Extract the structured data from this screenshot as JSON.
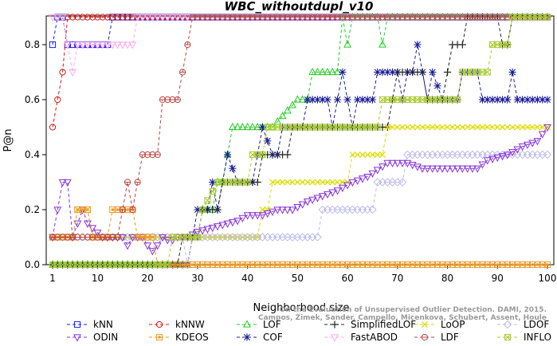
{
  "chart_data": {
    "type": "line",
    "title": "WBC_withoutdupl_v10",
    "xlabel": "Neighborhood size",
    "ylabel": "P@n",
    "xlim": [
      0,
      100
    ],
    "ylim": [
      0,
      0.9
    ],
    "x_ticks": [
      1,
      10,
      20,
      30,
      40,
      50,
      60,
      70,
      80,
      90,
      100
    ],
    "y_ticks": [
      0.0,
      0.2,
      0.4,
      0.6,
      0.8
    ],
    "y_tick_labels": [
      "0.0",
      "0.2",
      "0.4",
      "0.6",
      "0.8"
    ],
    "grid": false,
    "legend_position": "bottom",
    "watermark": [
      "On the Evaluation of Unsupervised Outlier Detection. DAMI, 2015.",
      "Campos, Zimek, Sander, Campello, Micenkova, Schubert, Assent, Houle"
    ],
    "series": [
      {
        "name": "kNN",
        "color": "#1a1aff",
        "marker": "square",
        "points": [
          [
            1,
            0.8
          ],
          [
            2,
            0.9
          ],
          [
            3,
            0.9
          ],
          [
            4,
            0.8
          ],
          [
            5,
            0.8
          ],
          [
            8,
            0.8
          ],
          [
            12,
            0.8
          ],
          [
            13,
            0.9
          ],
          [
            100,
            0.9
          ]
        ]
      },
      {
        "name": "kNNW",
        "color": "#dd1111",
        "marker": "circle",
        "points": [
          [
            1,
            0.5
          ],
          [
            2,
            0.6
          ],
          [
            3,
            0.7
          ],
          [
            4,
            0.9
          ],
          [
            100,
            0.9
          ]
        ]
      },
      {
        "name": "LOF",
        "color": "#22cc22",
        "marker": "triangle-up",
        "points": [
          [
            1,
            0.0
          ],
          [
            28,
            0.0
          ],
          [
            29,
            0.1
          ],
          [
            30,
            0.1
          ],
          [
            31,
            0.2
          ],
          [
            33,
            0.2
          ],
          [
            34,
            0.3
          ],
          [
            35,
            0.3
          ],
          [
            36,
            0.4
          ],
          [
            37,
            0.5
          ],
          [
            45,
            0.5
          ],
          [
            50,
            0.6
          ],
          [
            52,
            0.6
          ],
          [
            53,
            0.7
          ],
          [
            58,
            0.7
          ],
          [
            59,
            0.9
          ],
          [
            60,
            0.8
          ],
          [
            61,
            0.9
          ],
          [
            66,
            0.9
          ],
          [
            67,
            0.8
          ],
          [
            68,
            0.9
          ],
          [
            100,
            0.9
          ]
        ]
      },
      {
        "name": "COF",
        "color": "#1a1a99",
        "marker": "star",
        "points": [
          [
            1,
            0.0
          ],
          [
            28,
            0.0
          ],
          [
            29,
            0.1
          ],
          [
            30,
            0.2
          ],
          [
            32,
            0.2
          ],
          [
            33,
            0.3
          ],
          [
            34,
            0.2
          ],
          [
            35,
            0.3
          ],
          [
            36,
            0.4
          ],
          [
            38,
            0.3
          ],
          [
            41,
            0.3
          ],
          [
            42,
            0.4
          ],
          [
            43,
            0.5
          ],
          [
            45,
            0.4
          ],
          [
            46,
            0.4
          ],
          [
            47,
            0.5
          ],
          [
            51,
            0.5
          ],
          [
            52,
            0.6
          ],
          [
            56,
            0.6
          ],
          [
            57,
            0.5
          ],
          [
            58,
            0.6
          ],
          [
            59,
            0.7
          ],
          [
            60,
            0.6
          ],
          [
            61,
            0.5
          ],
          [
            62,
            0.6
          ],
          [
            65,
            0.6
          ],
          [
            66,
            0.7
          ],
          [
            70,
            0.7
          ],
          [
            71,
            0.6
          ],
          [
            72,
            0.7
          ],
          [
            73,
            0.7
          ],
          [
            74,
            0.8
          ],
          [
            75,
            0.7
          ],
          [
            76,
            0.6
          ],
          [
            77,
            0.7
          ],
          [
            79,
            0.6
          ],
          [
            82,
            0.6
          ],
          [
            83,
            0.7
          ],
          [
            86,
            0.7
          ],
          [
            87,
            0.6
          ],
          [
            92,
            0.6
          ],
          [
            93,
            0.7
          ],
          [
            94,
            0.6
          ],
          [
            100,
            0.6
          ]
        ]
      },
      {
        "name": "SimplifiedLOF",
        "color": "#222222",
        "marker": "plus",
        "points": [
          [
            1,
            0.0
          ],
          [
            26,
            0.0
          ],
          [
            27,
            0.1
          ],
          [
            30,
            0.1
          ],
          [
            31,
            0.2
          ],
          [
            34,
            0.2
          ],
          [
            35,
            0.3
          ],
          [
            42,
            0.3
          ],
          [
            43,
            0.4
          ],
          [
            48,
            0.4
          ],
          [
            49,
            0.5
          ],
          [
            68,
            0.5
          ],
          [
            69,
            0.6
          ],
          [
            70,
            0.7
          ],
          [
            75,
            0.7
          ],
          [
            76,
            0.6
          ],
          [
            79,
            0.6
          ],
          [
            80,
            0.7
          ],
          [
            81,
            0.8
          ],
          [
            83,
            0.8
          ],
          [
            84,
            0.9
          ],
          [
            90,
            0.9
          ],
          [
            91,
            0.8
          ],
          [
            92,
            0.8
          ],
          [
            93,
            0.9
          ],
          [
            100,
            0.9
          ]
        ]
      },
      {
        "name": "LoOP",
        "color": "#dddd00",
        "marker": "x",
        "points": [
          [
            1,
            0.1
          ],
          [
            5,
            0.1
          ],
          [
            6,
            0.2
          ],
          [
            8,
            0.2
          ],
          [
            9,
            0.1
          ],
          [
            29,
            0.1
          ],
          [
            30,
            0.1
          ],
          [
            42,
            0.1
          ],
          [
            43,
            0.2
          ],
          [
            44,
            0.2
          ],
          [
            45,
            0.3
          ],
          [
            60,
            0.3
          ],
          [
            61,
            0.4
          ],
          [
            67,
            0.4
          ],
          [
            68,
            0.5
          ],
          [
            100,
            0.5
          ]
        ]
      },
      {
        "name": "LDOF",
        "color": "#bbbbee",
        "marker": "diamond",
        "points": [
          [
            1,
            0.1
          ],
          [
            27,
            0.1
          ],
          [
            28,
            0.0
          ],
          [
            29,
            0.1
          ],
          [
            54,
            0.1
          ],
          [
            55,
            0.2
          ],
          [
            65,
            0.2
          ],
          [
            66,
            0.3
          ],
          [
            71,
            0.3
          ],
          [
            72,
            0.4
          ],
          [
            100,
            0.4
          ]
        ]
      },
      {
        "name": "ODIN",
        "color": "#8833dd",
        "marker": "triangle-down",
        "points": [
          [
            1,
            0.1
          ],
          [
            2,
            0.2
          ],
          [
            3,
            0.3
          ],
          [
            4,
            0.3
          ],
          [
            5,
            0.1
          ],
          [
            7,
            0.2
          ],
          [
            8,
            0.15
          ],
          [
            11,
            0.1
          ],
          [
            13,
            0.1
          ],
          [
            15,
            0.1
          ],
          [
            16,
            0.07
          ],
          [
            17,
            0.1
          ],
          [
            19,
            0.1
          ],
          [
            20,
            0.07
          ],
          [
            21,
            0.05
          ],
          [
            22,
            0.07
          ],
          [
            23,
            0.1
          ],
          [
            24,
            0.09
          ],
          [
            25,
            0.09
          ],
          [
            26,
            0.1
          ],
          [
            28,
            0.1
          ],
          [
            30,
            0.12
          ],
          [
            34,
            0.14
          ],
          [
            38,
            0.16
          ],
          [
            40,
            0.18
          ],
          [
            43,
            0.18
          ],
          [
            46,
            0.2
          ],
          [
            49,
            0.2
          ],
          [
            52,
            0.23
          ],
          [
            55,
            0.25
          ],
          [
            58,
            0.27
          ],
          [
            61,
            0.3
          ],
          [
            64,
            0.32
          ],
          [
            68,
            0.37
          ],
          [
            72,
            0.37
          ],
          [
            75,
            0.35
          ],
          [
            80,
            0.35
          ],
          [
            86,
            0.35
          ],
          [
            88,
            0.38
          ],
          [
            92,
            0.4
          ],
          [
            95,
            0.43
          ],
          [
            98,
            0.45
          ],
          [
            100,
            0.5
          ]
        ]
      },
      {
        "name": "KDEOS",
        "color": "#ee9922",
        "marker": "square-filled",
        "points": [
          [
            1,
            0.1
          ],
          [
            5,
            0.1
          ],
          [
            6,
            0.2
          ],
          [
            8,
            0.2
          ],
          [
            9,
            0.1
          ],
          [
            12,
            0.1
          ],
          [
            13,
            0.2
          ],
          [
            17,
            0.2
          ],
          [
            18,
            0.1
          ],
          [
            21,
            0.1
          ],
          [
            22,
            0.0
          ],
          [
            100,
            0.0
          ]
        ]
      },
      {
        "name": "FastABOD",
        "color": "#ffaaee",
        "marker": "triangle-down-open",
        "points": [
          [
            1,
            0.9
          ],
          [
            2,
            0.9
          ],
          [
            3,
            0.9
          ],
          [
            4,
            0.8
          ],
          [
            5,
            0.7
          ],
          [
            6,
            0.8
          ],
          [
            12,
            0.8
          ],
          [
            14,
            0.8
          ],
          [
            15,
            0.8
          ],
          [
            17,
            0.8
          ],
          [
            18,
            0.9
          ],
          [
            100,
            0.9
          ]
        ]
      },
      {
        "name": "LDF",
        "color": "#bb4444",
        "marker": "circle-dot",
        "points": [
          [
            1,
            0.1
          ],
          [
            2,
            0.1
          ],
          [
            8,
            0.1
          ],
          [
            10,
            0.1
          ],
          [
            14,
            0.1
          ],
          [
            15,
            0.2
          ],
          [
            16,
            0.3
          ],
          [
            17,
            0.2
          ],
          [
            18,
            0.3
          ],
          [
            19,
            0.4
          ],
          [
            20,
            0.4
          ],
          [
            22,
            0.4
          ],
          [
            23,
            0.6
          ],
          [
            26,
            0.6
          ],
          [
            27,
            0.7
          ],
          [
            28,
            0.8
          ],
          [
            29,
            0.9
          ],
          [
            100,
            0.9
          ]
        ]
      },
      {
        "name": "INFLO",
        "color": "#aacc33",
        "marker": "hourglass",
        "points": [
          [
            1,
            0.0
          ],
          [
            24,
            0.0
          ],
          [
            25,
            0.1
          ],
          [
            30,
            0.1
          ],
          [
            31,
            0.2
          ],
          [
            34,
            0.3
          ],
          [
            40,
            0.3
          ],
          [
            41,
            0.4
          ],
          [
            43,
            0.4
          ],
          [
            44,
            0.5
          ],
          [
            66,
            0.5
          ],
          [
            67,
            0.6
          ],
          [
            77,
            0.6
          ],
          [
            78,
            0.6
          ],
          [
            82,
            0.6
          ],
          [
            83,
            0.7
          ],
          [
            88,
            0.7
          ],
          [
            89,
            0.8
          ],
          [
            92,
            0.8
          ],
          [
            93,
            0.9
          ],
          [
            100,
            0.9
          ]
        ]
      }
    ]
  }
}
